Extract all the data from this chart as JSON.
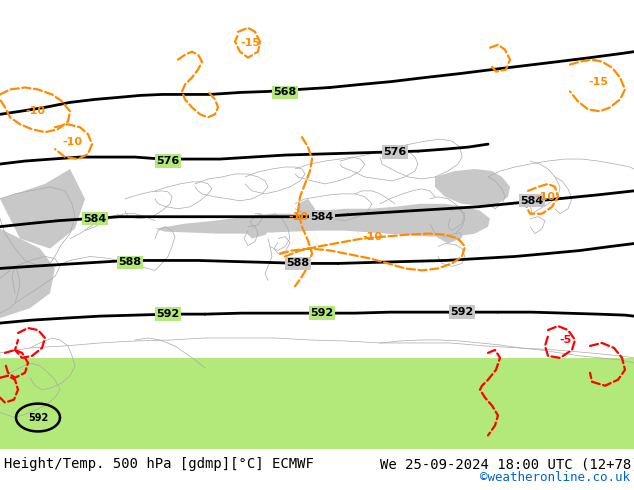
{
  "title_left": "Height/Temp. 500 hPa [gdmp][°C] ECMWF",
  "title_right": "We 25-09-2024 18:00 UTC (12+78)",
  "credit": "©weatheronline.co.uk",
  "credit_color": "#0066cc",
  "title_fontsize": 10,
  "credit_fontsize": 9,
  "fig_bg": "#ffffff",
  "map_bg": "#b3e87a",
  "sea_color": "#c8c8c8",
  "border_color": "#aaaaaa",
  "contour_color": "#000000",
  "orange_color": "#ff8c00",
  "red_color": "#ff0000",
  "contour_lw": 2.0,
  "temp_lw": 1.6,
  "border_lw": 0.5,
  "label_fontsize": 8,
  "temp_fontsize": 8
}
